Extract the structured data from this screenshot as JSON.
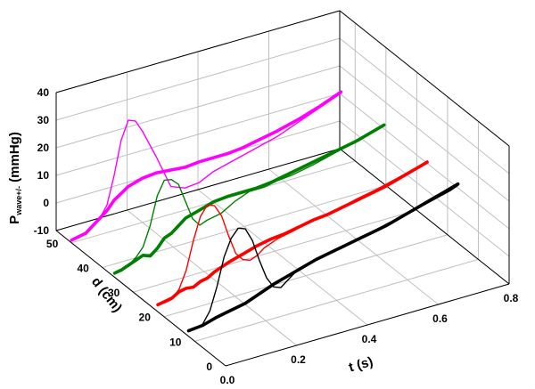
{
  "chart_data": {
    "type": "line",
    "projection": "3d",
    "title": "",
    "axes": {
      "x": {
        "label_main": "t (s)",
        "range": [
          0.0,
          0.8
        ],
        "ticks": [
          "0.0",
          "0.2",
          "0.4",
          "0.6",
          "0.8"
        ]
      },
      "y": {
        "label_main": "d (cm)",
        "range": [
          0,
          55
        ],
        "ticks": [
          "0",
          "10",
          "20",
          "30",
          "40",
          "50"
        ]
      },
      "z": {
        "label_main": "P",
        "label_sub": "wave+/-",
        "label_unit": " (mmHg)",
        "range": [
          -10,
          40
        ],
        "ticks": [
          "-10",
          "0",
          "10",
          "20",
          "30",
          "40"
        ]
      }
    },
    "grid": true,
    "series": [
      {
        "d": 50,
        "color": "#ff00ff",
        "forward": {
          "t": [
            0.0,
            0.01,
            0.02,
            0.03,
            0.04,
            0.05,
            0.06,
            0.08,
            0.1,
            0.12,
            0.14,
            0.16,
            0.18,
            0.2,
            0.24,
            0.28,
            0.32,
            0.36,
            0.4,
            0.46,
            0.52,
            0.58,
            0.64,
            0.7,
            0.74,
            0.76
          ],
          "p": [
            -9,
            -8.5,
            -9,
            -8,
            -8.5,
            -7,
            -6,
            -4,
            0,
            10,
            22,
            28.5,
            27.5,
            23,
            12,
            0,
            -2,
            -1.5,
            1,
            3,
            5,
            7,
            10,
            13,
            15,
            16
          ]
        },
        "total": {
          "t": [
            0.0,
            0.02,
            0.04,
            0.06,
            0.08,
            0.1,
            0.12,
            0.16,
            0.2,
            0.24,
            0.28,
            0.32,
            0.36,
            0.4,
            0.44,
            0.48,
            0.52,
            0.58,
            0.64,
            0.7,
            0.74,
            0.76
          ],
          "p": [
            -9,
            -8.5,
            -8,
            -6,
            -4,
            -2,
            1,
            4.5,
            6,
            6.5,
            6,
            5.5,
            6,
            6,
            6,
            6.5,
            7.5,
            9,
            11,
            13.5,
            15.5,
            16.5
          ]
        }
      },
      {
        "d": 36,
        "color": "#008000",
        "forward": {
          "t": [
            0.0,
            0.01,
            0.02,
            0.03,
            0.04,
            0.05,
            0.06,
            0.08,
            0.1,
            0.12,
            0.14,
            0.16,
            0.18,
            0.2,
            0.22,
            0.24,
            0.26,
            0.3,
            0.34,
            0.38,
            0.42,
            0.46,
            0.5,
            0.56,
            0.62,
            0.68,
            0.74,
            0.76
          ],
          "p": [
            -8.5,
            -8,
            -8.5,
            -7,
            -7.5,
            -6,
            -5,
            -2,
            5,
            15,
            20,
            19.5,
            17,
            10,
            3,
            0,
            1,
            2,
            5,
            7,
            7,
            8,
            8.5,
            10,
            12,
            14,
            16,
            17
          ]
        },
        "total": {
          "t": [
            0.0,
            0.02,
            0.04,
            0.06,
            0.08,
            0.1,
            0.12,
            0.14,
            0.16,
            0.18,
            0.2,
            0.24,
            0.28,
            0.32,
            0.36,
            0.4,
            0.44,
            0.48,
            0.52,
            0.56,
            0.6,
            0.64,
            0.68,
            0.72,
            0.76
          ],
          "p": [
            -8.5,
            -8,
            -7,
            -6,
            -5,
            -6,
            -4,
            -1,
            0,
            2,
            4,
            5.5,
            7,
            7.5,
            7.5,
            7.5,
            8,
            9,
            10,
            11,
            12,
            13,
            14,
            15.5,
            17
          ]
        }
      },
      {
        "d": 22,
        "color": "#ff0000",
        "forward": {
          "t": [
            0.0,
            0.01,
            0.02,
            0.04,
            0.06,
            0.08,
            0.1,
            0.12,
            0.14,
            0.16,
            0.18,
            0.2,
            0.22,
            0.24,
            0.26,
            0.28,
            0.3,
            0.34,
            0.38,
            0.42,
            0.46,
            0.5,
            0.56,
            0.62,
            0.68,
            0.74,
            0.76
          ],
          "p": [
            -7.5,
            -7,
            -7.5,
            -7,
            -4,
            2,
            12,
            20,
            23.5,
            22.5,
            18,
            10,
            3,
            0,
            -1,
            0,
            2,
            4,
            5,
            6.5,
            7,
            8,
            10,
            11.5,
            13.5,
            15.5,
            16.5
          ]
        },
        "total": {
          "t": [
            0.0,
            0.02,
            0.04,
            0.06,
            0.08,
            0.1,
            0.12,
            0.14,
            0.16,
            0.2,
            0.24,
            0.28,
            0.32,
            0.36,
            0.4,
            0.44,
            0.48,
            0.52,
            0.56,
            0.6,
            0.64,
            0.68,
            0.72,
            0.76
          ],
          "p": [
            -7.5,
            -7,
            -6.5,
            -5,
            -4.5,
            -4.8,
            -3.5,
            -3,
            -1.5,
            0.5,
            2,
            3.5,
            4.5,
            5,
            6,
            7,
            7.5,
            8.5,
            9.5,
            10.5,
            11.5,
            13,
            14.5,
            16
          ]
        }
      },
      {
        "d": 12,
        "color": "#000000",
        "forward": {
          "t": [
            0.0,
            0.01,
            0.02,
            0.04,
            0.06,
            0.08,
            0.1,
            0.12,
            0.14,
            0.16,
            0.18,
            0.2,
            0.22,
            0.24,
            0.26,
            0.28,
            0.3,
            0.34,
            0.38,
            0.42,
            0.46,
            0.5,
            0.56,
            0.62,
            0.68,
            0.74,
            0.76
          ],
          "p": [
            -8,
            -7.5,
            -8,
            -7,
            -3,
            5,
            15,
            21,
            24,
            23,
            18,
            10,
            3,
            -1,
            -2,
            0,
            2,
            4,
            5,
            6,
            7,
            8,
            10,
            11.5,
            13.5,
            15.5,
            16.5
          ]
        },
        "total": {
          "t": [
            0.0,
            0.04,
            0.08,
            0.12,
            0.16,
            0.2,
            0.24,
            0.28,
            0.32,
            0.36,
            0.4,
            0.44,
            0.48,
            0.52,
            0.56,
            0.6,
            0.64,
            0.68,
            0.72,
            0.76
          ],
          "p": [
            -8,
            -7.5,
            -6,
            -5,
            -4,
            -2,
            0,
            1.5,
            3,
            4.5,
            5.5,
            6.5,
            7.5,
            8.5,
            9.5,
            11,
            12.5,
            14,
            15.5,
            17
          ]
        }
      }
    ]
  }
}
